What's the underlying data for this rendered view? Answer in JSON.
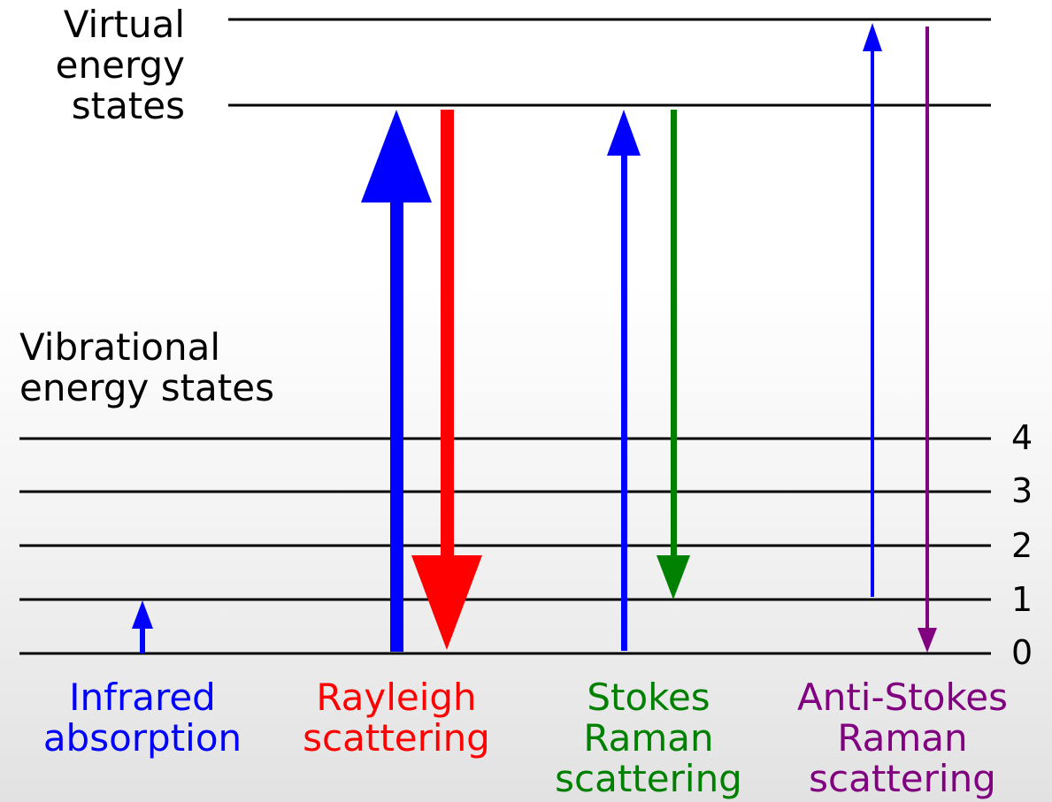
{
  "virtual_label": [
    "Virtual",
    "energy",
    "states"
  ],
  "vibrational_label": [
    "Vibrational",
    "energy states"
  ],
  "levels": [
    "4",
    "3",
    "2",
    "1",
    "0"
  ],
  "processes": [
    {
      "lines": [
        "Infrared",
        "absorption"
      ],
      "color": "#0000ff"
    },
    {
      "lines": [
        "Rayleigh",
        "scattering"
      ],
      "color": "#ff0000"
    },
    {
      "lines": [
        "Stokes",
        "Raman",
        "scattering"
      ],
      "color": "#008000"
    },
    {
      "lines": [
        "Anti-Stokes",
        "Raman",
        "scattering"
      ],
      "color": "#800080"
    }
  ],
  "colors": {
    "infrared": "#0000ff",
    "rayleigh_up": "#0000ff",
    "rayleigh_down": "#ff0000",
    "stokes_up": "#0000ff",
    "stokes_down": "#008000",
    "antistokes_up": "#0000ff",
    "antistokes_down": "#800080",
    "line": "#000000"
  }
}
